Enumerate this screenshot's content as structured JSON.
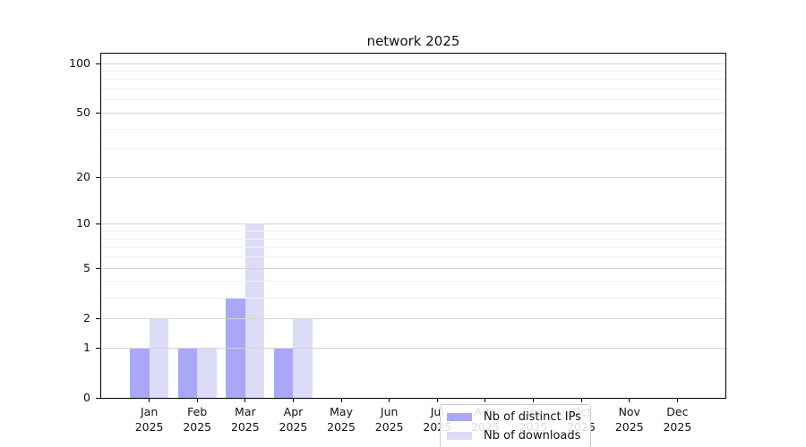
{
  "chart_data": {
    "type": "bar",
    "title": "network 2025",
    "categories": [
      "Jan",
      "Feb",
      "Mar",
      "Apr",
      "May",
      "Jun",
      "Jul",
      "Aug",
      "Sep",
      "Oct",
      "Nov",
      "Dec"
    ],
    "year_label": "2025",
    "series": [
      {
        "name": "Nb of distinct IPs",
        "color": "#a8a8f6",
        "values": [
          1,
          1,
          3,
          1,
          0,
          0,
          0,
          0,
          0,
          0,
          0,
          0
        ]
      },
      {
        "name": "Nb of downloads",
        "color": "#dcdcf8",
        "values": [
          2,
          1,
          10,
          2,
          0,
          0,
          0,
          0,
          0,
          0,
          0,
          0
        ]
      }
    ],
    "y_scale": "log10(1+v)",
    "ylim": [
      0,
      114
    ],
    "y_ticks": [
      0,
      1,
      2,
      5,
      10,
      20,
      50,
      100
    ],
    "y_minor_gridlines": [
      3,
      4,
      6,
      7,
      8,
      9,
      30,
      40,
      60,
      70,
      80,
      90
    ],
    "grid": "on",
    "grid_above_bars": true,
    "legend_position": "inside-bottom-center",
    "colors": {
      "major_grid": "#d5d5d5",
      "minor_grid": "#f0f0f0",
      "spine": "#000000",
      "text": "#111111",
      "legend_border": "#cccccc"
    }
  }
}
